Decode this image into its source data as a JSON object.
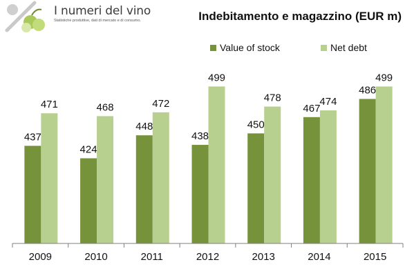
{
  "logo": {
    "title": "I numeri del vino",
    "subtitle": "Statistiche produttive, dati di mercato e di consumo.",
    "icon": "percent-grapes-icon"
  },
  "colors": {
    "value_of_stock": "#76933c",
    "net_debt": "#b7cf8f",
    "axis": "#7f7f7f",
    "text": "#111111"
  },
  "chart_data": {
    "type": "bar",
    "title": "Indebitamento e magazzino (EUR m)",
    "categories": [
      "2009",
      "2010",
      "2011",
      "2012",
      "2013",
      "2014",
      "2015"
    ],
    "series": [
      {
        "name": "Value of stock",
        "values": [
          437,
          424,
          448,
          438,
          450,
          467,
          486
        ]
      },
      {
        "name": "Net debt",
        "values": [
          471,
          468,
          472,
          499,
          478,
          474,
          499
        ]
      }
    ],
    "xlabel": "",
    "ylabel": "",
    "ylim": [
      335,
      500
    ],
    "grid": false,
    "legend": "top"
  }
}
